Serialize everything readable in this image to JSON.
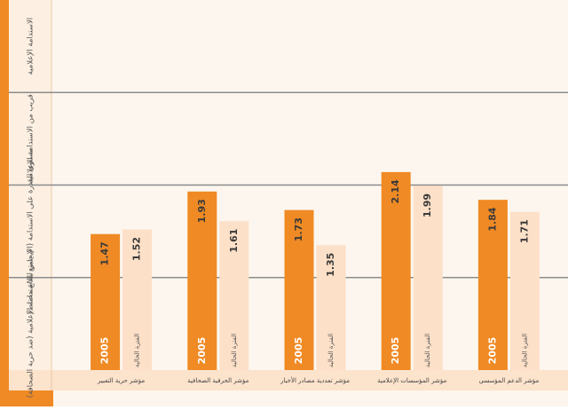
{
  "chart_data": {
    "type": "bar",
    "band_labels": [
      "لا يتمتع بالاستدامة الإعلامية (ضد حرية الصحافة)",
      "مستوى القدرة على الاستدامة (الإيجابي للقاع مختلط)",
      "قريب من الاستدامة الإعلامية",
      "الاستدامة الإعلامية"
    ],
    "categories": [
      "مؤشر حرية التعبير",
      "مؤشر الحرفية الصحافية",
      "مؤشر تعددية مصادر الأخبار",
      "مؤشر المؤسسات الإعلامية",
      "مؤشر الدعم المؤسسي"
    ],
    "series": [
      {
        "name": "2005",
        "color": "#f08a24",
        "values": [
          1.47,
          1.93,
          1.73,
          2.14,
          1.84
        ]
      },
      {
        "name": "الفترة الحالية",
        "color": "#fde0c8",
        "values": [
          1.52,
          1.61,
          1.35,
          1.99,
          1.71
        ]
      }
    ],
    "ylim": [
      0,
      4
    ],
    "yticks": [
      1,
      2,
      3
    ],
    "grid": true
  }
}
